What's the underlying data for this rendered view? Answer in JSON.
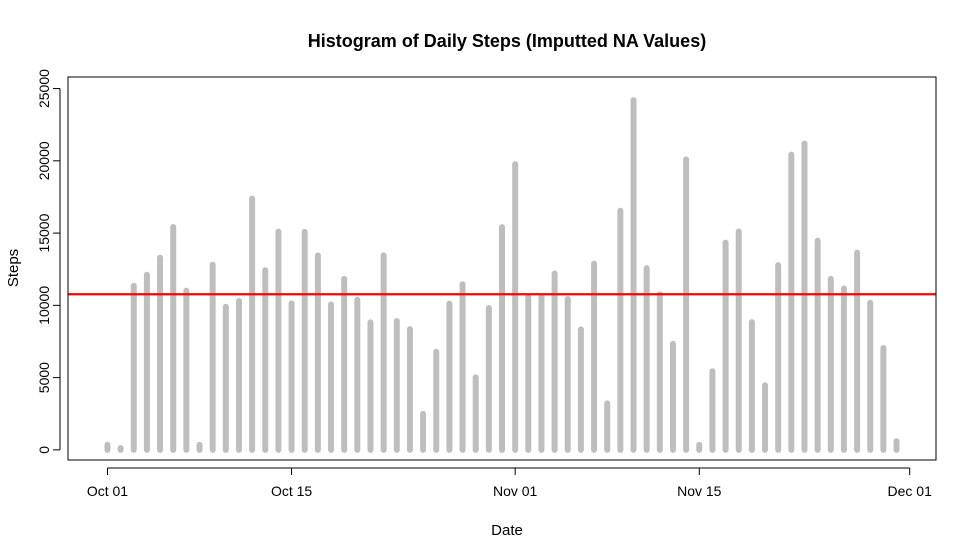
{
  "chart_data": {
    "type": "bar",
    "title": "Histogram of Daily Steps (Imputted NA Values)",
    "xlabel": "Date",
    "ylabel": "Steps",
    "x_start": "2012-10-01",
    "x_labels": [
      {
        "date": "2012-10-01",
        "label": "Oct 01"
      },
      {
        "date": "2012-10-15",
        "label": "Oct 15"
      },
      {
        "date": "2012-11-01",
        "label": "Nov 01"
      },
      {
        "date": "2012-11-15",
        "label": "Nov 15"
      },
      {
        "date": "2012-12-01",
        "label": "Dec 01"
      }
    ],
    "xlim": [
      "2012-09-28",
      "2012-12-03"
    ],
    "ylim": [
      -700,
      25800
    ],
    "y_ticks": [
      0,
      5000,
      10000,
      15000,
      20000,
      25000
    ],
    "bar_color": "#bebebe",
    "series": [
      {
        "name": "",
        "x": [
          "2012-10-01",
          "2012-10-02",
          "2012-10-03",
          "2012-10-04",
          "2012-10-05",
          "2012-10-06",
          "2012-10-07",
          "2012-10-08",
          "2012-10-09",
          "2012-10-10",
          "2012-10-11",
          "2012-10-12",
          "2012-10-13",
          "2012-10-14",
          "2012-10-15",
          "2012-10-16",
          "2012-10-17",
          "2012-10-18",
          "2012-10-19",
          "2012-10-20",
          "2012-10-21",
          "2012-10-22",
          "2012-10-23",
          "2012-10-24",
          "2012-10-25",
          "2012-10-26",
          "2012-10-27",
          "2012-10-28",
          "2012-10-29",
          "2012-10-30",
          "2012-10-31",
          "2012-11-01",
          "2012-11-02",
          "2012-11-03",
          "2012-11-04",
          "2012-11-05",
          "2012-11-06",
          "2012-11-07",
          "2012-11-08",
          "2012-11-09",
          "2012-11-10",
          "2012-11-11",
          "2012-11-12",
          "2012-11-13",
          "2012-11-14",
          "2012-11-15",
          "2012-11-16",
          "2012-11-17",
          "2012-11-18",
          "2012-11-19",
          "2012-11-20",
          "2012-11-21",
          "2012-11-22",
          "2012-11-23",
          "2012-11-24",
          "2012-11-25",
          "2012-11-26",
          "2012-11-27",
          "2012-11-28",
          "2012-11-29",
          "2012-11-30"
        ],
        "values": [
          350,
          126,
          11352,
          12116,
          13294,
          15420,
          11015,
          350,
          12811,
          9900,
          10304,
          17382,
          12426,
          15098,
          10139,
          15084,
          13452,
          10056,
          11829,
          10395,
          8821,
          13460,
          8918,
          8355,
          2492,
          6778,
          10119,
          11458,
          5018,
          9819,
          15414,
          19768,
          10600,
          10571,
          12200,
          10439,
          8334,
          12883,
          3219,
          16547,
          24200,
          12575,
          10765,
          7336,
          20100,
          350,
          5441,
          14339,
          15110,
          8841,
          4472,
          12787,
          20427,
          21194,
          14478,
          11834,
          11162,
          13646,
          10183,
          7047,
          600
        ]
      }
    ],
    "hline": {
      "y": 10766,
      "color": "#ff0000"
    }
  }
}
